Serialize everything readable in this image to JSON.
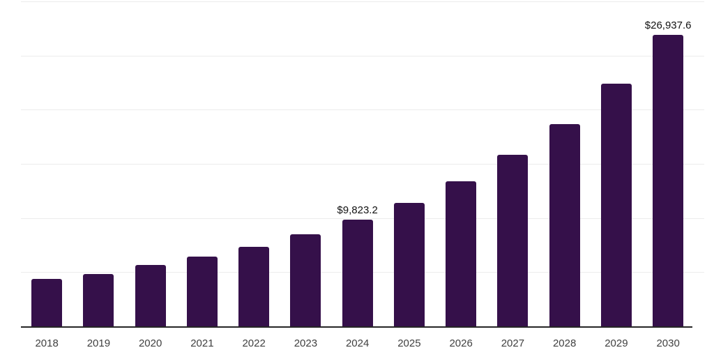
{
  "chart_data": {
    "type": "bar",
    "title": "",
    "xlabel": "",
    "ylabel": "",
    "categories": [
      "2018",
      "2019",
      "2020",
      "2021",
      "2022",
      "2023",
      "2024",
      "2025",
      "2026",
      "2027",
      "2028",
      "2029",
      "2030"
    ],
    "values": [
      4360,
      4850,
      5640,
      6430,
      7370,
      8480,
      9823.2,
      11410,
      13370,
      15820,
      18670,
      22400,
      26937.6
    ],
    "labeled_points": [
      {
        "category": "2024",
        "value": 9823.2,
        "label": "$9,823.2"
      },
      {
        "category": "2030",
        "value": 26937.6,
        "label": "$26,937.6"
      }
    ],
    "ylim": [
      0,
      30000
    ],
    "gridline_interval": 5000,
    "grid": "horizontal",
    "legend": "none",
    "y_axis_tick_labels_visible": false
  },
  "colors": {
    "bar": "#35104A",
    "background": "#ffffff",
    "gridline": "#ececec",
    "axis_line": "#262626",
    "tick_label": "#404040",
    "data_label": "#111111"
  }
}
